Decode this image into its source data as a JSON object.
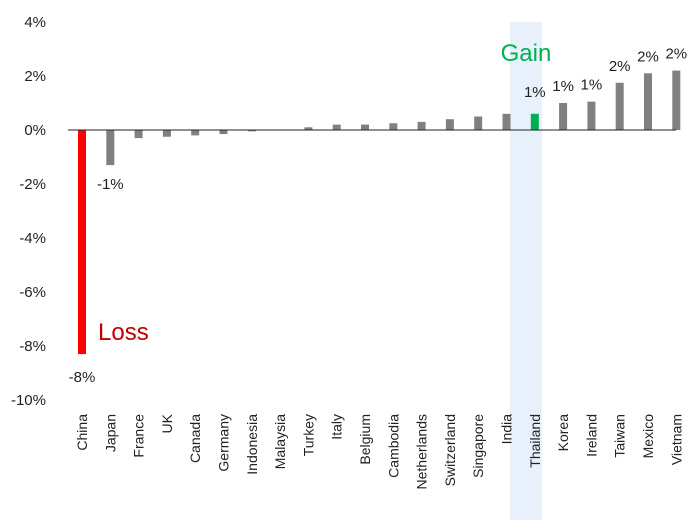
{
  "chart_data": {
    "type": "bar",
    "categories": [
      "China",
      "Japan",
      "France",
      "UK",
      "Canada",
      "Germany",
      "Indonesia",
      "Malaysia",
      "Turkey",
      "Italy",
      "Belgium",
      "Cambodia",
      "Netherlands",
      "Switzerland",
      "Singapore",
      "India",
      "Thailand",
      "Korea",
      "Ireland",
      "Taiwan",
      "Mexico",
      "Vietnam"
    ],
    "values": [
      -8.3,
      -1.3,
      -0.3,
      -0.25,
      -0.2,
      -0.15,
      -0.05,
      0.0,
      0.1,
      0.2,
      0.2,
      0.25,
      0.3,
      0.4,
      0.5,
      0.6,
      0.6,
      1.0,
      1.05,
      1.75,
      2.1,
      2.2
    ],
    "data_labels": [
      "-8%",
      "-1%",
      "",
      "",
      "",
      "",
      "",
      "",
      "",
      "",
      "",
      "",
      "",
      "",
      "",
      "",
      "1%",
      "1%",
      "1%",
      "2%",
      "2%",
      "2%"
    ],
    "ylim": [
      -10,
      4
    ],
    "y_ticks": [
      4,
      2,
      0,
      -2,
      -4,
      -6,
      -8,
      -10
    ],
    "y_tick_labels": [
      "4%",
      "2%",
      "0%",
      "-2%",
      "-4%",
      "-6%",
      "-8%",
      "-10%"
    ],
    "highlight_category": "Thailand",
    "annotations": {
      "gain": "Gain",
      "loss": "Loss"
    },
    "title": "",
    "xlabel": "",
    "ylabel": "",
    "grid": false,
    "colors": {
      "default_bar": "#808080",
      "loss": "#ff0000",
      "loss_label": "#c00000",
      "gain": "#00b050",
      "highlight_band": "#e8f1fb",
      "axis": "#222222"
    }
  }
}
